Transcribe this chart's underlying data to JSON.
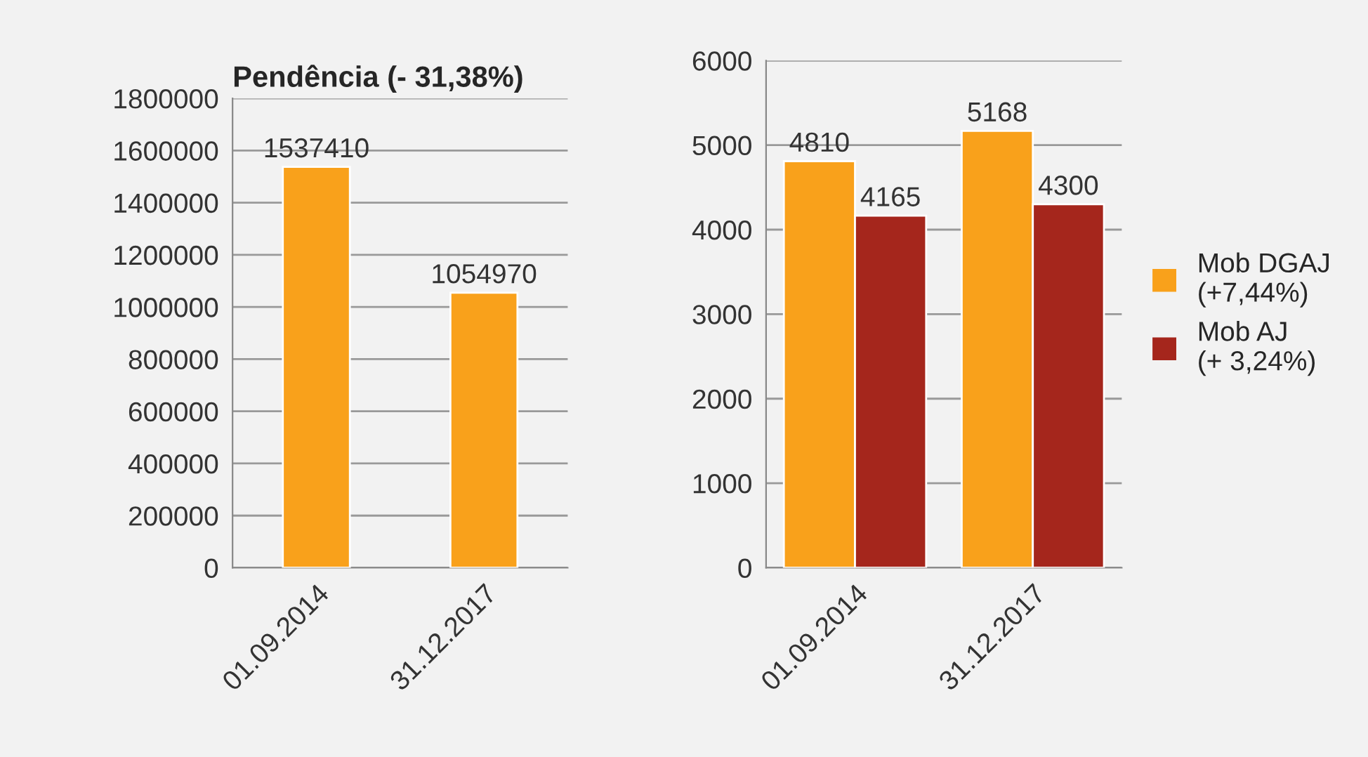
{
  "chart_data": [
    {
      "type": "bar",
      "title": "Pendência (- 31,38%)",
      "categories": [
        "01.09.2014",
        "31.12.2017"
      ],
      "series": [
        {
          "color": "#f9a11b",
          "values": [
            1537410,
            1054970
          ]
        }
      ],
      "ylim": [
        0,
        1800000
      ],
      "yticks": [
        0,
        200000,
        400000,
        600000,
        800000,
        1000000,
        1200000,
        1400000,
        1600000,
        1800000
      ],
      "grid": "y",
      "data_labels": true
    },
    {
      "type": "bar",
      "categories": [
        "01.09.2014",
        "31.12.2017"
      ],
      "series": [
        {
          "name": "Mob DGAJ\n(+7,44%)",
          "color": "#f9a11b",
          "values": [
            4810,
            5168
          ]
        },
        {
          "name": "Mob AJ\n(+ 3,24%)",
          "color": "#a5261c",
          "values": [
            4165,
            4300
          ]
        }
      ],
      "ylim": [
        0,
        6000
      ],
      "yticks": [
        0,
        1000,
        2000,
        3000,
        4000,
        5000,
        6000
      ],
      "grid": "y",
      "data_labels": true,
      "legend": "right"
    }
  ]
}
